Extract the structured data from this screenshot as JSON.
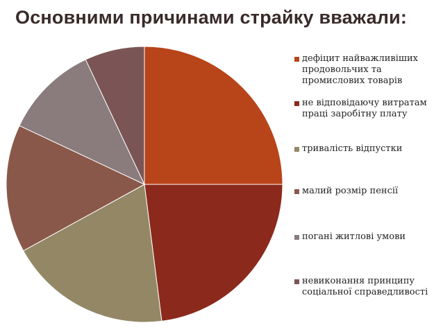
{
  "title": "Основними причинами страйку вважали:",
  "chart_data": {
    "type": "pie",
    "title": "Основними причинами страйку вважали:",
    "categories": [
      "дефіцит найважливіших продовольчих та промислових товарів",
      "не відповідаючу витратам праці заробітну плату",
      "тривалість відпустки",
      "малий розмір пенсії",
      "погані житлові умови",
      "невиконання принципу соціальної справедливості"
    ],
    "values": [
      25,
      23,
      19,
      15,
      11,
      7
    ],
    "colors": [
      "#b8441a",
      "#8b2a1c",
      "#938766",
      "#8a584a",
      "#8a7c7c",
      "#7b5555"
    ],
    "legend_position": "right"
  }
}
